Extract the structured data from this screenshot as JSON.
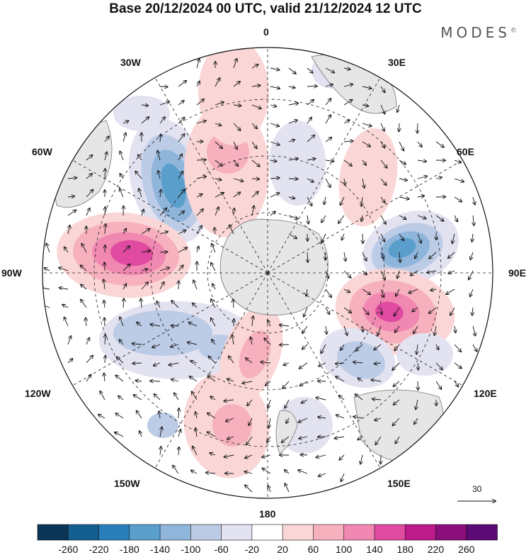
{
  "title": "Base 20/12/2024 00 UTC, valid 21/12/2024 12 UTC",
  "brand": "MODES",
  "brand_mark": "©",
  "longitude_labels": {
    "lon_0": "0",
    "lon_30e": "30E",
    "lon_60e": "60E",
    "lon_90e": "90E",
    "lon_120e": "120E",
    "lon_150e": "150E",
    "lon_180": "180",
    "lon_150w": "150W",
    "lon_120w": "120W",
    "lon_90w": "90W",
    "lon_60w": "60W",
    "lon_30w": "30W"
  },
  "vector_scale": {
    "label": "30"
  },
  "colorbar": {
    "colors": [
      "#0a3555",
      "#135f8f",
      "#2a7fba",
      "#5a9ecc",
      "#8fb5db",
      "#bccbe6",
      "#e2e2f1",
      "#ffffff",
      "#fad6d6",
      "#f7b1be",
      "#f088b1",
      "#e04aa0",
      "#bd1a8a",
      "#8a0e7c",
      "#5c0a74"
    ],
    "labels": [
      "-260",
      "-220",
      "-180",
      "-140",
      "-100",
      "-60",
      "-20",
      "20",
      "60",
      "100",
      "140",
      "180",
      "220",
      "260"
    ]
  },
  "chart_data": {
    "type": "heatmap",
    "projection": "south-polar-stereographic",
    "description_fields": "anomaly field with wind vectors",
    "color_levels": [
      -260,
      -220,
      -180,
      -140,
      -100,
      -60,
      -20,
      20,
      60,
      100,
      140,
      180,
      220,
      260
    ],
    "anomaly_centers": [
      {
        "sign": "negative",
        "approx_lon": "35W",
        "peak": -180
      },
      {
        "sign": "positive",
        "approx_lon": "80W",
        "peak": 180
      },
      {
        "sign": "negative",
        "approx_lon": "75E",
        "peak": -180
      },
      {
        "sign": "positive",
        "approx_lon": "100E",
        "peak": 180
      },
      {
        "sign": "negative",
        "approx_lon": "130E",
        "peak": -140
      },
      {
        "sign": "positive",
        "approx_lon": "170W",
        "peak": 100
      },
      {
        "sign": "negative",
        "approx_lon": "115W",
        "peak": -100
      },
      {
        "sign": "positive",
        "approx_lon": "10W",
        "peak": 100
      }
    ]
  }
}
